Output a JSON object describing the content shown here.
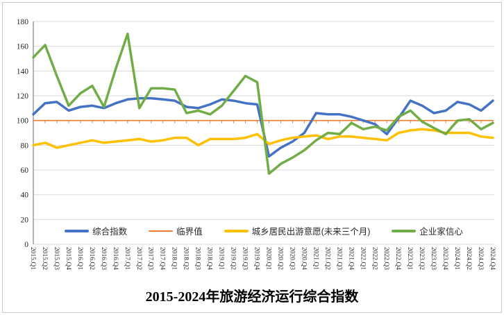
{
  "chart_data": {
    "type": "line",
    "title": "2015-2024年旅游经济运行综合指数",
    "xlabel": "",
    "ylabel": "",
    "ylim": [
      0,
      180
    ],
    "y_tick_step": 20,
    "grid": "horizontal",
    "grid_color": "#d9d9d9",
    "axis_color": "#9b9b9b",
    "legend_position": "bottom",
    "x_labels": [
      "2015.Q1",
      "2015.Q2",
      "2015.Q3",
      "2015.Q4",
      "2016.Q1",
      "2016.Q2",
      "2016.Q3",
      "2016.Q4",
      "2017.Q1",
      "2017.Q2",
      "2017.Q3",
      "2017.Q4",
      "2018.Q1",
      "2018.Q2",
      "2018.Q3",
      "2018.Q4",
      "2019.Q1",
      "2019.Q2",
      "2019.Q3",
      "2019.Q4",
      "2020.Q1",
      "2020.Q2",
      "2020.Q3",
      "2020.Q4",
      "2021.Q1",
      "2021.Q2",
      "2021.Q3",
      "2021.Q4",
      "2022.Q1",
      "2022.Q2",
      "2022.Q3",
      "2022.Q4",
      "2023.Q1",
      "2023.Q2",
      "2023.Q3",
      "2023.Q4",
      "2024.Q1",
      "2024.Q2",
      "2024.Q3",
      "2024.Q4"
    ],
    "series": [
      {
        "name": "综合指数",
        "color": "#4472C4",
        "stroke_width": 3.5,
        "values": [
          105,
          114,
          115,
          108,
          111,
          112,
          110,
          114,
          117,
          118,
          118,
          117,
          116,
          111,
          110,
          113,
          117,
          116,
          114,
          113,
          71,
          78,
          83,
          90,
          106,
          105,
          105,
          103,
          100,
          97,
          89,
          102,
          116,
          112,
          106,
          108,
          115,
          113,
          108,
          116
        ]
      },
      {
        "name": "临界值",
        "color": "#ED7D31",
        "stroke_width": 1.6,
        "tick_marks_below": true,
        "values": [
          100,
          100,
          100,
          100,
          100,
          100,
          100,
          100,
          100,
          100,
          100,
          100,
          100,
          100,
          100,
          100,
          100,
          100,
          100,
          100,
          100,
          100,
          100,
          100,
          100,
          100,
          100,
          100,
          100,
          100,
          100,
          100,
          100,
          100,
          100,
          100,
          100,
          100,
          100,
          100
        ]
      },
      {
        "name": "城乡居民出游意愿(未来三个月)",
        "color": "#FFC000",
        "stroke_width": 3.5,
        "values": [
          80,
          82,
          78,
          80,
          82,
          84,
          82,
          83,
          84,
          85,
          83,
          84,
          86,
          86,
          80,
          85,
          85,
          85,
          86,
          89,
          81,
          84,
          86,
          87,
          88,
          85,
          87,
          87,
          86,
          85,
          84,
          90,
          92,
          93,
          92,
          90,
          90,
          90,
          87,
          86
        ]
      },
      {
        "name": "企业家信心",
        "color": "#70AD47",
        "stroke_width": 3.5,
        "values": [
          151,
          161,
          136,
          112,
          122,
          128,
          111,
          142,
          170,
          110,
          126,
          126,
          125,
          106,
          108,
          105,
          112,
          124,
          136,
          131,
          57,
          65,
          70,
          76,
          84,
          90,
          89,
          98,
          93,
          95,
          92,
          103,
          108,
          99,
          94,
          89,
          100,
          101,
          93,
          98
        ]
      }
    ]
  }
}
